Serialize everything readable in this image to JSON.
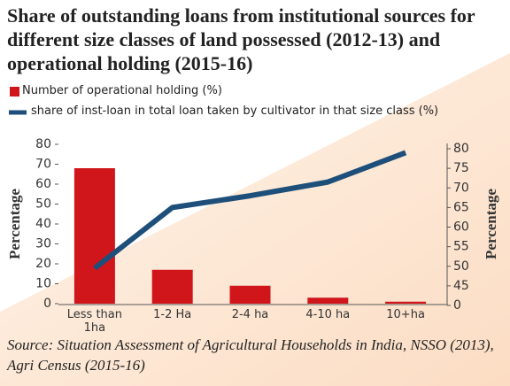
{
  "chart_data": {
    "type": "bar_line",
    "title": "Share of outstanding loans from institutional sources for different size classes of land possessed (2012-13) and operational holding (2015-16)",
    "categories": [
      "Less than 1ha",
      "1-2 Ha",
      "2-4 ha",
      "4-10 ha",
      "10+ha"
    ],
    "series": [
      {
        "name": "Number of operational holding (%)",
        "color": "#d0161b",
        "type": "bar",
        "axis": "y",
        "values": [
          68,
          17,
          9,
          3,
          1
        ]
      },
      {
        "name": "share of inst-loan in total loan taken by cultivator in that size class (%)",
        "color": "#1d4f7a",
        "type": "line",
        "axis": "y2",
        "values": [
          49.5,
          65,
          68,
          71.5,
          79
        ]
      }
    ],
    "ylabel": "Percentage",
    "y2label": "Percentage",
    "ylim": [
      0,
      80
    ],
    "yticks": [
      0,
      10,
      20,
      30,
      40,
      50,
      60,
      70,
      80
    ],
    "y2lim": [
      0,
      80
    ],
    "y2ticks": [
      0,
      45,
      50,
      55,
      60,
      65,
      70,
      75,
      80
    ],
    "y2_break": [
      0,
      40
    ],
    "source": "Source: Situation Assessment of Agricultural Households in India, NSSO (2013), Agri Census (2015-16)"
  }
}
